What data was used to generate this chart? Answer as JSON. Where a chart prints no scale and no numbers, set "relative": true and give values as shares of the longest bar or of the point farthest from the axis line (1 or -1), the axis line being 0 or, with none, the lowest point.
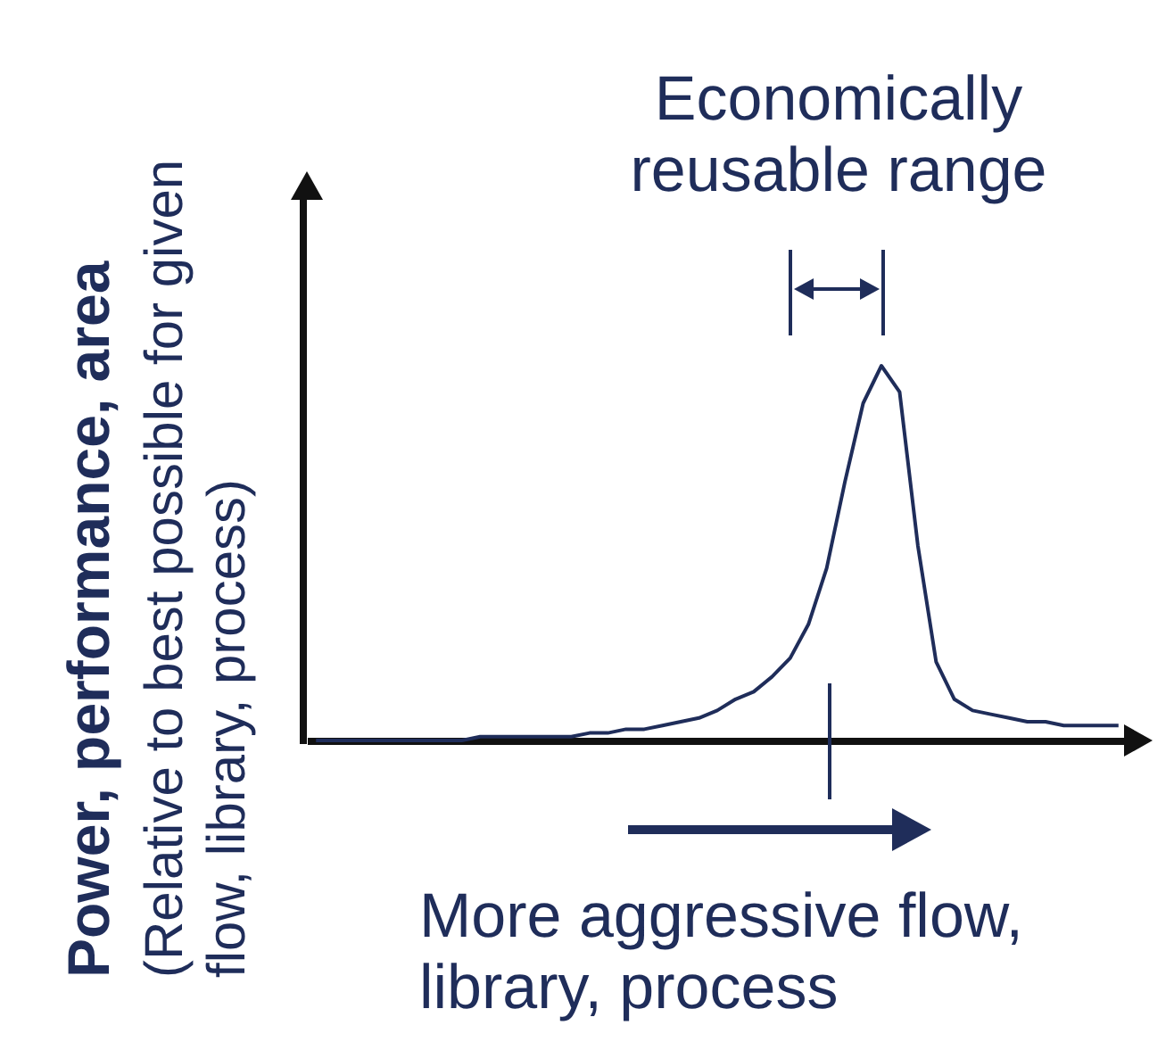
{
  "chart_data": {
    "type": "line",
    "relative": true,
    "color": "#1f2d5a",
    "ylabel": "Power, performance, area",
    "xlabel": "More aggressive flow, library, process",
    "annotations": [
      "(Relative to best possible for given flow, library, process)",
      "Economically reusable range"
    ],
    "categories": [
      null,
      null,
      null,
      null,
      null,
      null,
      null,
      null,
      null,
      null,
      null,
      null,
      null,
      null,
      null,
      null,
      null,
      null,
      null,
      null,
      null,
      null,
      null,
      null,
      null,
      null,
      null,
      null,
      null,
      null,
      null,
      null,
      null,
      null,
      null,
      null,
      null,
      null,
      null,
      null,
      null,
      null,
      null,
      null,
      null
    ],
    "values": [
      0,
      0,
      0,
      0,
      0,
      0,
      0,
      0,
      0,
      0.01,
      0.01,
      0.01,
      0.01,
      0.01,
      0.01,
      0.02,
      0.02,
      0.03,
      0.03,
      0.04,
      0.05,
      0.06,
      0.08,
      0.11,
      0.13,
      0.17,
      0.22,
      0.31,
      0.46,
      0.69,
      0.9,
      1,
      0.93,
      0.52,
      0.21,
      0.11,
      0.08,
      0.07,
      0.06,
      0.05,
      0.05,
      0.04,
      0.04,
      0.04,
      0.04
    ],
    "grid": false
  }
}
